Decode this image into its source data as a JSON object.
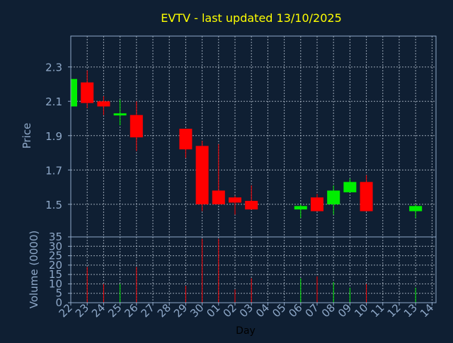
{
  "title": "EVTV - last updated 13/10/2025",
  "colors": {
    "background": "#0f1f33",
    "title": "#ffff00",
    "axis_label": "#8fa9c9",
    "tick_label": "#8fa9c9",
    "frame": "#8fa9c9",
    "grid": "#c8d3e0",
    "up": "#00ee00",
    "down": "#ff0000"
  },
  "chart_data": [
    {
      "type": "candlestick",
      "ylabel": "Price",
      "ylim": [
        1.31,
        2.48
      ],
      "yticks": [
        "1.5",
        "1.7",
        "1.9",
        "2.1",
        "2.3"
      ],
      "grid": true,
      "x_days": [
        "22",
        "23",
        "24",
        "25",
        "26",
        "27",
        "28",
        "29",
        "30",
        "01",
        "02",
        "03",
        "04",
        "05",
        "06",
        "07",
        "08",
        "09",
        "10",
        "11",
        "12",
        "13",
        "14"
      ],
      "candles": [
        {
          "day": "22",
          "open": 2.07,
          "high": 2.23,
          "low": 2.07,
          "close": 2.23
        },
        {
          "day": "23",
          "open": 2.21,
          "high": 2.28,
          "low": 2.06,
          "close": 2.09
        },
        {
          "day": "24",
          "open": 2.1,
          "high": 2.13,
          "low": 2.02,
          "close": 2.07
        },
        {
          "day": "25",
          "open": 2.02,
          "high": 2.11,
          "low": 1.96,
          "close": 2.03
        },
        {
          "day": "26",
          "open": 2.02,
          "high": 2.1,
          "low": 1.81,
          "close": 1.89
        },
        {
          "day": "29",
          "open": 1.94,
          "high": 1.94,
          "low": 1.77,
          "close": 1.82
        },
        {
          "day": "30",
          "open": 1.84,
          "high": 1.87,
          "low": 1.46,
          "close": 1.5
        },
        {
          "day": "01",
          "open": 1.58,
          "high": 1.85,
          "low": 1.5,
          "close": 1.5
        },
        {
          "day": "02",
          "open": 1.54,
          "high": 1.55,
          "low": 1.44,
          "close": 1.51
        },
        {
          "day": "03",
          "open": 1.52,
          "high": 1.61,
          "low": 1.47,
          "close": 1.47
        },
        {
          "day": "06",
          "open": 1.47,
          "high": 1.5,
          "low": 1.42,
          "close": 1.49
        },
        {
          "day": "07",
          "open": 1.54,
          "high": 1.56,
          "low": 1.46,
          "close": 1.46
        },
        {
          "day": "08",
          "open": 1.5,
          "high": 1.61,
          "low": 1.44,
          "close": 1.58
        },
        {
          "day": "09",
          "open": 1.57,
          "high": 1.65,
          "low": 1.57,
          "close": 1.63
        },
        {
          "day": "10",
          "open": 1.63,
          "high": 1.67,
          "low": 1.46,
          "close": 1.46
        },
        {
          "day": "13",
          "open": 1.46,
          "high": 1.5,
          "low": 1.42,
          "close": 1.49
        }
      ]
    },
    {
      "type": "bar",
      "xlabel": "Day",
      "ylabel": "Volume (0000)",
      "ylim": [
        0,
        35
      ],
      "yticks": [
        "0",
        "5",
        "10",
        "15",
        "20",
        "25",
        "30",
        "35"
      ],
      "grid": true,
      "x_days": [
        "22",
        "23",
        "24",
        "25",
        "26",
        "27",
        "28",
        "29",
        "30",
        "01",
        "02",
        "03",
        "04",
        "05",
        "06",
        "07",
        "08",
        "09",
        "10",
        "11",
        "12",
        "13",
        "14"
      ],
      "volumes": [
        {
          "day": "23",
          "value": 19,
          "direction": "down"
        },
        {
          "day": "24",
          "value": 10,
          "direction": "down"
        },
        {
          "day": "25",
          "value": 10,
          "direction": "up"
        },
        {
          "day": "26",
          "value": 19,
          "direction": "down"
        },
        {
          "day": "29",
          "value": 9,
          "direction": "down"
        },
        {
          "day": "30",
          "value": 34,
          "direction": "down"
        },
        {
          "day": "01",
          "value": 34,
          "direction": "down"
        },
        {
          "day": "02",
          "value": 7,
          "direction": "down"
        },
        {
          "day": "03",
          "value": 13,
          "direction": "down"
        },
        {
          "day": "06",
          "value": 13,
          "direction": "up"
        },
        {
          "day": "07",
          "value": 14,
          "direction": "down"
        },
        {
          "day": "08",
          "value": 11,
          "direction": "up"
        },
        {
          "day": "09",
          "value": 8,
          "direction": "up"
        },
        {
          "day": "10",
          "value": 10,
          "direction": "down"
        },
        {
          "day": "13",
          "value": 8,
          "direction": "up"
        }
      ]
    }
  ]
}
